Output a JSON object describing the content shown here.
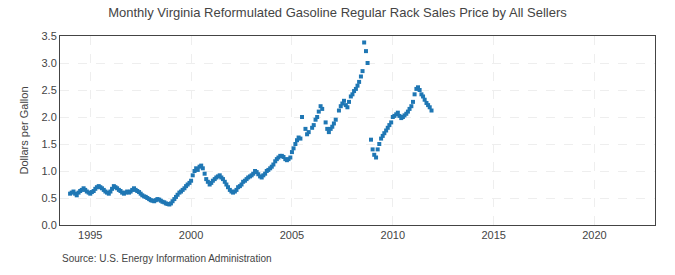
{
  "chart_data": {
    "type": "scatter",
    "title": "Monthly Virginia Reformulated Gasoline Regular Rack Sales Price by All Sellers",
    "ylabel": "Dollars per Gallon",
    "annotations": [
      "Source: U.S. Energy Information Administration"
    ],
    "marker": "square",
    "grid": true,
    "xlim": [
      1993.5,
      2023.0
    ],
    "ylim": [
      0.0,
      3.5
    ],
    "xticks": [
      1995,
      2000,
      2005,
      2010,
      2015,
      2020
    ],
    "yticks": [
      {
        "value": 0.0,
        "label": "0.0"
      },
      0.5,
      {
        "value": 1.0,
        "label": "1.0"
      },
      1.5,
      {
        "value": 2.0,
        "label": "2.0"
      },
      2.5,
      {
        "value": 3.0,
        "label": "3.0"
      },
      3.5
    ],
    "x": [
      1994.0,
      1994.08,
      1994.17,
      1994.25,
      1994.33,
      1994.42,
      1994.5,
      1994.58,
      1994.67,
      1994.75,
      1994.83,
      1994.92,
      1995.0,
      1995.08,
      1995.17,
      1995.25,
      1995.33,
      1995.42,
      1995.5,
      1995.58,
      1995.67,
      1995.75,
      1995.83,
      1995.92,
      1996.0,
      1996.08,
      1996.17,
      1996.25,
      1996.33,
      1996.42,
      1996.5,
      1996.58,
      1996.67,
      1996.75,
      1996.83,
      1996.92,
      1997.0,
      1997.08,
      1997.17,
      1997.25,
      1997.33,
      1997.42,
      1997.5,
      1997.58,
      1997.67,
      1997.75,
      1997.83,
      1997.92,
      1998.0,
      1998.08,
      1998.17,
      1998.25,
      1998.33,
      1998.42,
      1998.5,
      1998.58,
      1998.67,
      1998.75,
      1998.83,
      1998.92,
      1999.0,
      1999.08,
      1999.17,
      1999.25,
      1999.33,
      1999.42,
      1999.5,
      1999.58,
      1999.67,
      1999.75,
      1999.83,
      1999.92,
      2000.0,
      2000.08,
      2000.17,
      2000.25,
      2000.33,
      2000.42,
      2000.5,
      2000.58,
      2000.67,
      2000.75,
      2000.83,
      2000.92,
      2001.0,
      2001.08,
      2001.17,
      2001.25,
      2001.33,
      2001.42,
      2001.5,
      2001.58,
      2001.67,
      2001.75,
      2001.83,
      2001.92,
      2002.0,
      2002.08,
      2002.17,
      2002.25,
      2002.33,
      2002.42,
      2002.5,
      2002.58,
      2002.67,
      2002.75,
      2002.83,
      2002.92,
      2003.0,
      2003.08,
      2003.17,
      2003.25,
      2003.33,
      2003.42,
      2003.5,
      2003.58,
      2003.67,
      2003.75,
      2003.83,
      2003.92,
      2004.0,
      2004.08,
      2004.17,
      2004.25,
      2004.33,
      2004.42,
      2004.5,
      2004.58,
      2004.67,
      2004.75,
      2004.83,
      2004.92,
      2005.0,
      2005.08,
      2005.17,
      2005.25,
      2005.33,
      2005.42,
      2005.5,
      2005.67,
      2005.75,
      2005.83,
      2006.0,
      2006.08,
      2006.17,
      2006.25,
      2006.33,
      2006.42,
      2006.5,
      2006.67,
      2006.75,
      2006.83,
      2006.92,
      2007.0,
      2007.08,
      2007.17,
      2007.33,
      2007.42,
      2007.5,
      2007.58,
      2007.67,
      2007.75,
      2007.83,
      2007.92,
      2008.0,
      2008.08,
      2008.17,
      2008.25,
      2008.33,
      2008.42,
      2008.5,
      2008.58,
      2008.67,
      2008.75,
      2008.92,
      2009.0,
      2009.08,
      2009.17,
      2009.25,
      2009.33,
      2009.42,
      2009.5,
      2009.58,
      2009.67,
      2009.75,
      2009.83,
      2009.92,
      2010.0,
      2010.08,
      2010.17,
      2010.25,
      2010.33,
      2010.42,
      2010.5,
      2010.58,
      2010.67,
      2010.75,
      2010.83,
      2010.92,
      2011.0,
      2011.08,
      2011.17,
      2011.25,
      2011.33,
      2011.42,
      2011.5,
      2011.58,
      2011.67,
      2011.75,
      2011.83,
      2011.92
    ],
    "values": [
      0.58,
      0.6,
      0.62,
      0.58,
      0.55,
      0.6,
      0.63,
      0.65,
      0.68,
      0.65,
      0.62,
      0.6,
      0.58,
      0.61,
      0.63,
      0.67,
      0.7,
      0.72,
      0.7,
      0.68,
      0.65,
      0.62,
      0.6,
      0.58,
      0.62,
      0.67,
      0.72,
      0.7,
      0.68,
      0.65,
      0.63,
      0.6,
      0.58,
      0.6,
      0.62,
      0.6,
      0.62,
      0.65,
      0.68,
      0.65,
      0.63,
      0.61,
      0.58,
      0.55,
      0.53,
      0.52,
      0.5,
      0.48,
      0.46,
      0.45,
      0.44,
      0.46,
      0.48,
      0.47,
      0.45,
      0.43,
      0.42,
      0.4,
      0.39,
      0.38,
      0.4,
      0.44,
      0.48,
      0.52,
      0.56,
      0.6,
      0.62,
      0.65,
      0.68,
      0.72,
      0.75,
      0.78,
      0.82,
      0.92,
      1.0,
      1.05,
      1.02,
      1.08,
      1.1,
      1.05,
      0.95,
      0.85,
      0.8,
      0.75,
      0.78,
      0.82,
      0.85,
      0.88,
      0.9,
      0.92,
      0.88,
      0.85,
      0.8,
      0.75,
      0.7,
      0.65,
      0.62,
      0.6,
      0.62,
      0.65,
      0.7,
      0.72,
      0.75,
      0.8,
      0.82,
      0.85,
      0.88,
      0.9,
      0.92,
      0.95,
      1.0,
      0.98,
      0.94,
      0.9,
      0.88,
      0.92,
      0.95,
      1.0,
      1.02,
      1.05,
      1.08,
      1.12,
      1.18,
      1.22,
      1.25,
      1.28,
      1.28,
      1.26,
      1.22,
      1.2,
      1.22,
      1.25,
      1.35,
      1.42,
      1.5,
      1.57,
      1.62,
      1.6,
      2.0,
      1.78,
      1.68,
      1.72,
      1.8,
      1.85,
      1.95,
      2.0,
      2.1,
      2.2,
      2.15,
      1.9,
      1.78,
      1.72,
      1.78,
      1.82,
      1.88,
      1.95,
      2.12,
      2.2,
      2.25,
      2.3,
      2.22,
      2.18,
      2.28,
      2.38,
      2.42,
      2.48,
      2.52,
      2.58,
      2.65,
      2.75,
      2.85,
      3.38,
      3.22,
      3.0,
      1.58,
      1.4,
      1.3,
      1.25,
      1.4,
      1.5,
      1.6,
      1.65,
      1.7,
      1.75,
      1.8,
      1.85,
      1.9,
      2.0,
      2.02,
      2.05,
      2.08,
      2.02,
      1.98,
      2.0,
      2.03,
      2.06,
      2.1,
      2.15,
      2.2,
      2.28,
      2.42,
      2.52,
      2.55,
      2.5,
      2.42,
      2.38,
      2.32,
      2.26,
      2.22,
      2.18,
      2.12
    ]
  }
}
